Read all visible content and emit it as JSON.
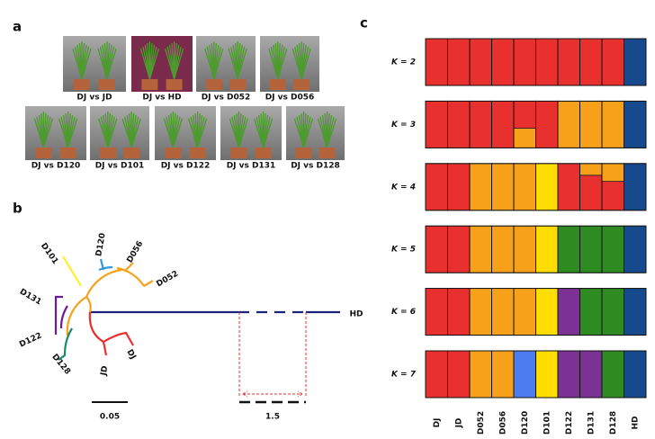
{
  "panel_a": {
    "letter": "a",
    "captions": [
      "DJ vs JD",
      "DJ vs HD",
      "DJ vs D052",
      "DJ vs D056",
      "DJ vs D120",
      "DJ vs D101",
      "DJ vs D122",
      "DJ vs D131",
      "DJ vs D128"
    ]
  },
  "panel_b": {
    "letter": "b",
    "leaves": [
      "D101",
      "D120",
      "D056",
      "D052",
      "D131",
      "D122",
      "D128",
      "JD",
      "DJ",
      "HD"
    ],
    "scale_left": "0.05",
    "scale_right": "1.5"
  },
  "chart_data": {
    "type": "bar",
    "stacked": true,
    "letter": "c",
    "categories": [
      "DJ",
      "JD",
      "D052",
      "D056",
      "D120",
      "D101",
      "D122",
      "D131",
      "D128",
      "HD"
    ],
    "ylim": [
      0,
      1
    ],
    "panels": [
      {
        "label": "K = 2",
        "series": [
          {
            "color": "#e8312f",
            "values": [
              1,
              1,
              1,
              1,
              1,
              1,
              1,
              1,
              1,
              0
            ]
          },
          {
            "color": "#174a8c",
            "values": [
              0,
              0,
              0,
              0,
              0,
              0,
              0,
              0,
              0,
              1
            ]
          }
        ]
      },
      {
        "label": "K = 3",
        "series": [
          {
            "color": "#f7a11a",
            "values": [
              0,
              0,
              0,
              0,
              0.42,
              0,
              1,
              1,
              1,
              0
            ]
          },
          {
            "color": "#e8312f",
            "values": [
              1,
              1,
              1,
              1,
              0.58,
              1,
              0,
              0,
              0,
              0
            ]
          },
          {
            "color": "#174a8c",
            "values": [
              0,
              0,
              0,
              0,
              0,
              0,
              0,
              0,
              0,
              1
            ]
          }
        ]
      },
      {
        "label": "K = 4",
        "series": [
          {
            "color": "#e8312f",
            "values": [
              1,
              1,
              0,
              0,
              0,
              0,
              1,
              0.75,
              0.62,
              0
            ]
          },
          {
            "color": "#f7a11a",
            "values": [
              0,
              0,
              1,
              1,
              1,
              0,
              0,
              0.25,
              0.38,
              0
            ]
          },
          {
            "color": "#ffdd00",
            "values": [
              0,
              0,
              0,
              0,
              0,
              1,
              0,
              0,
              0,
              0
            ]
          },
          {
            "color": "#174a8c",
            "values": [
              0,
              0,
              0,
              0,
              0,
              0,
              0,
              0,
              0,
              1
            ]
          }
        ]
      },
      {
        "label": "K = 5",
        "series": [
          {
            "color": "#e8312f",
            "values": [
              1,
              1,
              0,
              0,
              0,
              0,
              0,
              0,
              0,
              0
            ]
          },
          {
            "color": "#f7a11a",
            "values": [
              0,
              0,
              1,
              1,
              1,
              0,
              0,
              0,
              0,
              0
            ]
          },
          {
            "color": "#ffdd00",
            "values": [
              0,
              0,
              0,
              0,
              0,
              1,
              0,
              0,
              0,
              0
            ]
          },
          {
            "color": "#2e8b22",
            "values": [
              0,
              0,
              0,
              0,
              0,
              0,
              1,
              1,
              1,
              0
            ]
          },
          {
            "color": "#174a8c",
            "values": [
              0,
              0,
              0,
              0,
              0,
              0,
              0,
              0,
              0,
              1
            ]
          }
        ]
      },
      {
        "label": "K = 6",
        "series": [
          {
            "color": "#e8312f",
            "values": [
              1,
              1,
              0,
              0,
              0,
              0,
              0,
              0,
              0,
              0
            ]
          },
          {
            "color": "#f7a11a",
            "values": [
              0,
              0,
              1,
              1,
              1,
              0,
              0,
              0,
              0,
              0
            ]
          },
          {
            "color": "#ffdd00",
            "values": [
              0,
              0,
              0,
              0,
              0,
              1,
              0,
              0,
              0,
              0
            ]
          },
          {
            "color": "#7b3294",
            "values": [
              0,
              0,
              0,
              0,
              0,
              0,
              1,
              0,
              0,
              0
            ]
          },
          {
            "color": "#2e8b22",
            "values": [
              0,
              0,
              0,
              0,
              0,
              0,
              0,
              1,
              1,
              0
            ]
          },
          {
            "color": "#174a8c",
            "values": [
              0,
              0,
              0,
              0,
              0,
              0,
              0,
              0,
              0,
              1
            ]
          }
        ]
      },
      {
        "label": "K = 7",
        "series": [
          {
            "color": "#e8312f",
            "values": [
              1,
              1,
              0,
              0,
              0,
              0,
              0,
              0,
              0,
              0
            ]
          },
          {
            "color": "#f7a11a",
            "values": [
              0,
              0,
              1,
              1,
              0,
              0,
              0,
              0,
              0,
              0
            ]
          },
          {
            "color": "#4d7cf0",
            "values": [
              0,
              0,
              0,
              0,
              1,
              0,
              0,
              0,
              0,
              0
            ]
          },
          {
            "color": "#ffdd00",
            "values": [
              0,
              0,
              0,
              0,
              0,
              1,
              0,
              0,
              0,
              0
            ]
          },
          {
            "color": "#7b3294",
            "values": [
              0,
              0,
              0,
              0,
              0,
              0,
              1,
              1,
              0,
              0
            ]
          },
          {
            "color": "#2e8b22",
            "values": [
              0,
              0,
              0,
              0,
              0,
              0,
              0,
              0,
              1,
              0
            ]
          },
          {
            "color": "#174a8c",
            "values": [
              0,
              0,
              0,
              0,
              0,
              0,
              0,
              0,
              0,
              1
            ]
          }
        ]
      }
    ]
  }
}
